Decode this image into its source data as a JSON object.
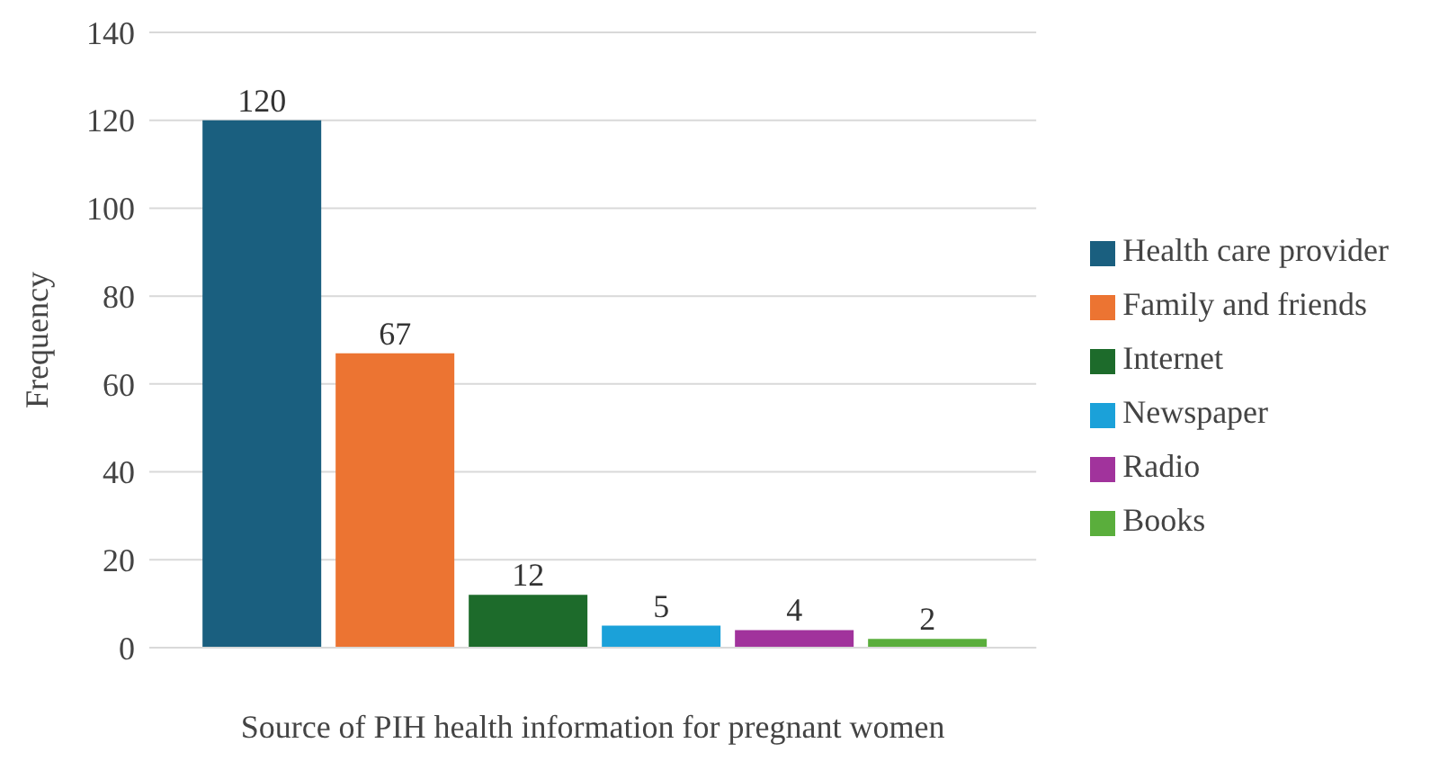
{
  "chart_data": {
    "type": "bar",
    "xlabel": "Source of PIH health information for pregnant women",
    "ylabel": "Frequency",
    "categories": [
      null
    ],
    "series": [
      {
        "name": "Health care provider",
        "color": "#1a5f7f",
        "values": [
          120
        ]
      },
      {
        "name": "Family and friends",
        "color": "#ec7432",
        "values": [
          67
        ]
      },
      {
        "name": "Internet",
        "color": "#1d6b2b",
        "values": [
          12
        ]
      },
      {
        "name": "Newspaper",
        "color": "#1ba1d9",
        "values": [
          5
        ]
      },
      {
        "name": "Radio",
        "color": "#a1339c",
        "values": [
          4
        ]
      },
      {
        "name": "Books",
        "color": "#5aae3c",
        "values": [
          2
        ]
      }
    ],
    "ylim": [
      0,
      140
    ],
    "yticks": [
      0,
      20,
      40,
      60,
      80,
      100,
      120,
      140
    ],
    "grid": "y",
    "legend": "right",
    "data_labels": true
  }
}
